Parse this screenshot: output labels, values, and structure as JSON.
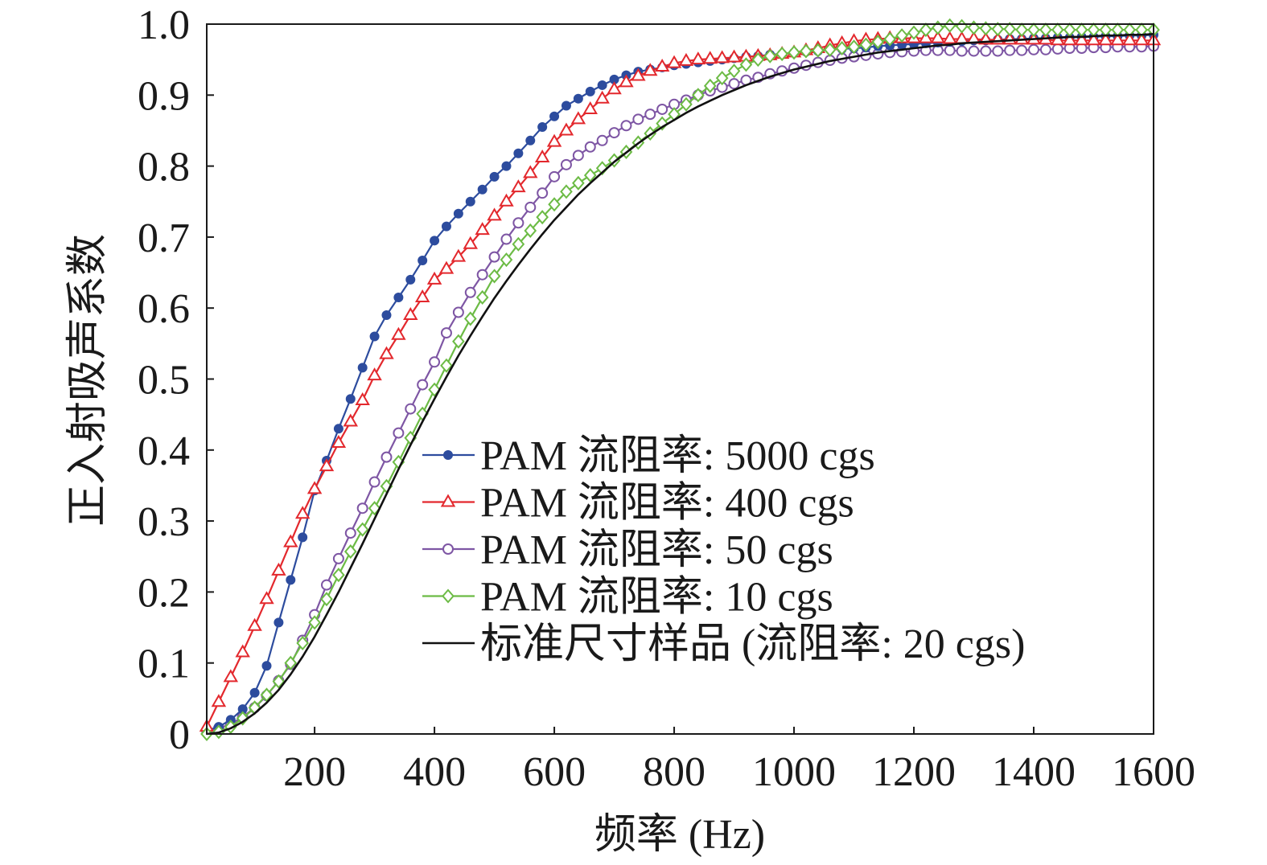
{
  "chart_data": {
    "type": "line",
    "title": "",
    "xlabel": "频率 (Hz)",
    "ylabel": "正入射吸声系数",
    "xlim": [
      20,
      1600
    ],
    "ylim": [
      0,
      1.0
    ],
    "x_ticks": [
      "200",
      "400",
      "600",
      "800",
      "1000",
      "1200",
      "1400",
      "1600"
    ],
    "y_ticks": [
      "0",
      "0.1",
      "0.2",
      "0.3",
      "0.4",
      "0.5",
      "0.6",
      "0.7",
      "0.8",
      "0.9",
      "1.0"
    ],
    "grid": false,
    "legend_position": "lower-center",
    "x": [
      20,
      40,
      60,
      80,
      100,
      120,
      140,
      160,
      180,
      200,
      220,
      240,
      260,
      280,
      300,
      320,
      340,
      360,
      380,
      400,
      420,
      440,
      460,
      480,
      500,
      520,
      540,
      560,
      580,
      600,
      620,
      640,
      660,
      680,
      700,
      720,
      740,
      760,
      780,
      800,
      820,
      840,
      860,
      880,
      900,
      920,
      940,
      960,
      980,
      1000,
      1020,
      1040,
      1060,
      1080,
      1100,
      1120,
      1140,
      1160,
      1180,
      1200,
      1220,
      1240,
      1260,
      1280,
      1300,
      1320,
      1340,
      1360,
      1380,
      1400,
      1420,
      1440,
      1460,
      1480,
      1500,
      1520,
      1540,
      1560,
      1580,
      1600
    ],
    "series": [
      {
        "name": "PAM 流阻率: 5000 cgs",
        "color": "#2d4c9e",
        "marker": "filled-circle",
        "values": [
          0.005,
          0.01,
          0.02,
          0.035,
          0.058,
          0.096,
          0.157,
          0.217,
          0.277,
          0.343,
          0.385,
          0.43,
          0.472,
          0.516,
          0.56,
          0.59,
          0.615,
          0.64,
          0.667,
          0.695,
          0.715,
          0.733,
          0.75,
          0.767,
          0.785,
          0.8,
          0.818,
          0.836,
          0.855,
          0.87,
          0.885,
          0.895,
          0.905,
          0.914,
          0.922,
          0.928,
          0.933,
          0.936,
          0.939,
          0.942,
          0.944,
          0.946,
          0.948,
          0.95,
          0.952,
          0.954,
          0.955,
          0.957,
          0.958,
          0.96,
          0.961,
          0.962,
          0.964,
          0.965,
          0.966,
          0.967,
          0.969,
          0.97,
          0.971,
          0.972,
          0.973,
          0.974,
          0.975,
          0.976,
          0.977,
          0.977,
          0.978,
          0.979,
          0.979,
          0.98,
          0.98,
          0.981,
          0.981,
          0.982,
          0.982,
          0.983,
          0.983,
          0.984,
          0.984,
          0.985
        ]
      },
      {
        "name": "PAM 流阻率: 400 cgs",
        "color": "#e3282d",
        "marker": "open-triangle",
        "values": [
          0.01,
          0.045,
          0.08,
          0.115,
          0.152,
          0.19,
          0.23,
          0.27,
          0.31,
          0.345,
          0.377,
          0.41,
          0.44,
          0.47,
          0.505,
          0.535,
          0.562,
          0.59,
          0.615,
          0.64,
          0.655,
          0.672,
          0.69,
          0.71,
          0.73,
          0.75,
          0.77,
          0.79,
          0.812,
          0.834,
          0.85,
          0.866,
          0.88,
          0.895,
          0.908,
          0.918,
          0.927,
          0.934,
          0.94,
          0.945,
          0.948,
          0.95,
          0.951,
          0.952,
          0.953,
          0.954,
          0.955,
          0.956,
          0.958,
          0.96,
          0.963,
          0.966,
          0.97,
          0.973,
          0.976,
          0.978,
          0.979,
          0.98,
          0.98,
          0.98,
          0.98,
          0.98,
          0.979,
          0.979,
          0.979,
          0.978,
          0.978,
          0.978,
          0.978,
          0.978,
          0.978,
          0.977,
          0.977,
          0.977,
          0.977,
          0.977,
          0.977,
          0.977,
          0.977,
          0.977
        ]
      },
      {
        "name": "PAM 流阻率: 50 cgs",
        "color": "#7e56a4",
        "marker": "open-circle",
        "values": [
          0.005,
          0.008,
          0.014,
          0.024,
          0.037,
          0.054,
          0.075,
          0.098,
          0.132,
          0.168,
          0.21,
          0.247,
          0.283,
          0.318,
          0.355,
          0.39,
          0.424,
          0.458,
          0.492,
          0.524,
          0.565,
          0.594,
          0.622,
          0.647,
          0.672,
          0.697,
          0.72,
          0.742,
          0.762,
          0.785,
          0.802,
          0.815,
          0.827,
          0.836,
          0.847,
          0.857,
          0.866,
          0.873,
          0.88,
          0.887,
          0.893,
          0.9,
          0.906,
          0.911,
          0.916,
          0.921,
          0.925,
          0.93,
          0.934,
          0.938,
          0.942,
          0.946,
          0.949,
          0.952,
          0.954,
          0.956,
          0.958,
          0.96,
          0.961,
          0.962,
          0.963,
          0.963,
          0.963,
          0.962,
          0.962,
          0.962,
          0.962,
          0.963,
          0.963,
          0.964,
          0.964,
          0.965,
          0.966,
          0.966,
          0.967,
          0.967,
          0.968,
          0.968,
          0.968,
          0.969
        ]
      },
      {
        "name": "PAM 流阻率: 10 cgs",
        "color": "#6cbb45",
        "marker": "open-diamond",
        "values": [
          0.0,
          0.003,
          0.01,
          0.022,
          0.037,
          0.055,
          0.074,
          0.1,
          0.128,
          0.157,
          0.19,
          0.224,
          0.257,
          0.288,
          0.318,
          0.349,
          0.383,
          0.417,
          0.451,
          0.485,
          0.519,
          0.553,
          0.585,
          0.615,
          0.645,
          0.668,
          0.69,
          0.709,
          0.728,
          0.746,
          0.764,
          0.776,
          0.787,
          0.797,
          0.808,
          0.82,
          0.833,
          0.846,
          0.86,
          0.873,
          0.887,
          0.9,
          0.913,
          0.924,
          0.934,
          0.943,
          0.95,
          0.955,
          0.958,
          0.96,
          0.962,
          0.963,
          0.964,
          0.966,
          0.968,
          0.971,
          0.975,
          0.979,
          0.984,
          0.988,
          0.992,
          0.995,
          0.998,
          0.997,
          0.995,
          0.994,
          0.993,
          0.993,
          0.992,
          0.992,
          0.992,
          0.992,
          0.992,
          0.992,
          0.992,
          0.992,
          0.992,
          0.992,
          0.992,
          0.992
        ]
      },
      {
        "name": "标准尺寸样品 (流阻率: 20 cgs)",
        "color": "#111111",
        "marker": "none",
        "values": [
          0.0,
          0.002,
          0.008,
          0.017,
          0.029,
          0.044,
          0.062,
          0.084,
          0.109,
          0.137,
          0.168,
          0.2,
          0.234,
          0.268,
          0.303,
          0.338,
          0.373,
          0.407,
          0.44,
          0.472,
          0.503,
          0.533,
          0.561,
          0.588,
          0.614,
          0.638,
          0.661,
          0.683,
          0.704,
          0.724,
          0.742,
          0.76,
          0.776,
          0.791,
          0.806,
          0.819,
          0.832,
          0.844,
          0.855,
          0.865,
          0.875,
          0.884,
          0.892,
          0.9,
          0.907,
          0.914,
          0.92,
          0.926,
          0.931,
          0.936,
          0.94,
          0.944,
          0.948,
          0.951,
          0.954,
          0.957,
          0.96,
          0.962,
          0.964,
          0.966,
          0.968,
          0.97,
          0.971,
          0.973,
          0.974,
          0.975,
          0.976,
          0.977,
          0.978,
          0.979,
          0.98,
          0.981,
          0.982,
          0.982,
          0.983,
          0.984,
          0.984,
          0.985,
          0.985,
          0.986
        ]
      }
    ]
  }
}
